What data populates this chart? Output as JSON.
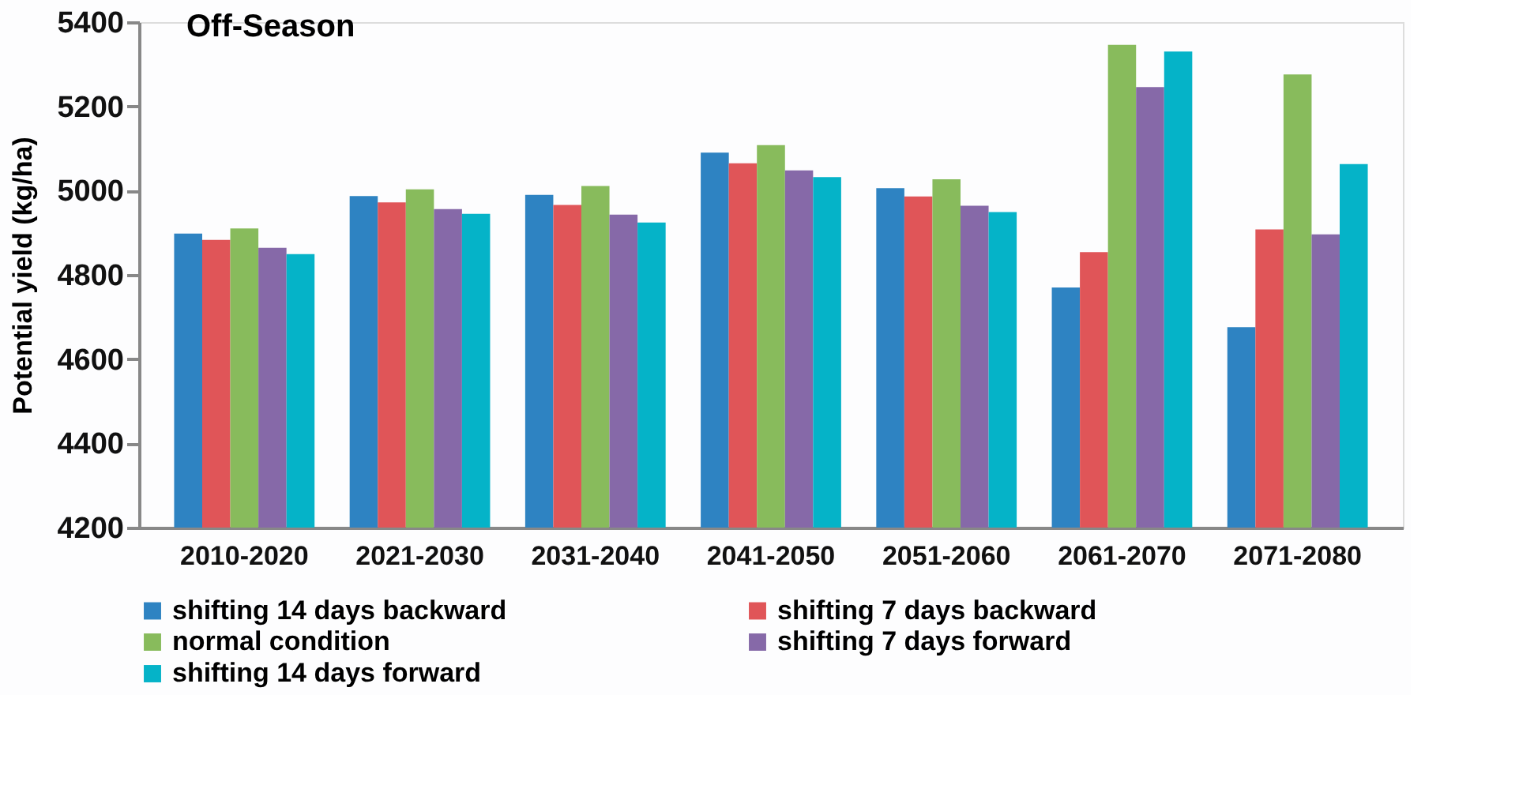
{
  "chart_data": {
    "type": "bar",
    "title": "Off-Season",
    "ylabel": "Potential yield (kg/ha)",
    "categories": [
      "2010-2020",
      "2021-2030",
      "2031-2040",
      "2041-2050",
      "2051-2060",
      "2061-2070",
      "2071-2080"
    ],
    "series": [
      {
        "name": "shifting 14 days backward",
        "color": "#2e83c2",
        "values": [
          4898,
          4987,
          4990,
          5090,
          5006,
          4770,
          4676
        ]
      },
      {
        "name": "shifting 7 days backward",
        "color": "#e05558",
        "values": [
          4883,
          4972,
          4966,
          5065,
          4986,
          4854,
          4908
        ]
      },
      {
        "name": "normal condition",
        "color": "#88bb5c",
        "values": [
          4910,
          5003,
          5011,
          5108,
          5027,
          5346,
          5276
        ]
      },
      {
        "name": "shifting 7 days forward",
        "color": "#8669a8",
        "values": [
          4864,
          4956,
          4943,
          5048,
          4964,
          5246,
          4896
        ]
      },
      {
        "name": "shifting 14 days forward",
        "color": "#05b3c8",
        "values": [
          4849,
          4945,
          4924,
          5032,
          4949,
          5330,
          5063
        ]
      }
    ],
    "ylim": [
      4200,
      5400
    ],
    "yticks": [
      4200,
      4400,
      4600,
      4800,
      5000,
      5200,
      5400
    ],
    "grid": false,
    "legend": "bottom"
  }
}
